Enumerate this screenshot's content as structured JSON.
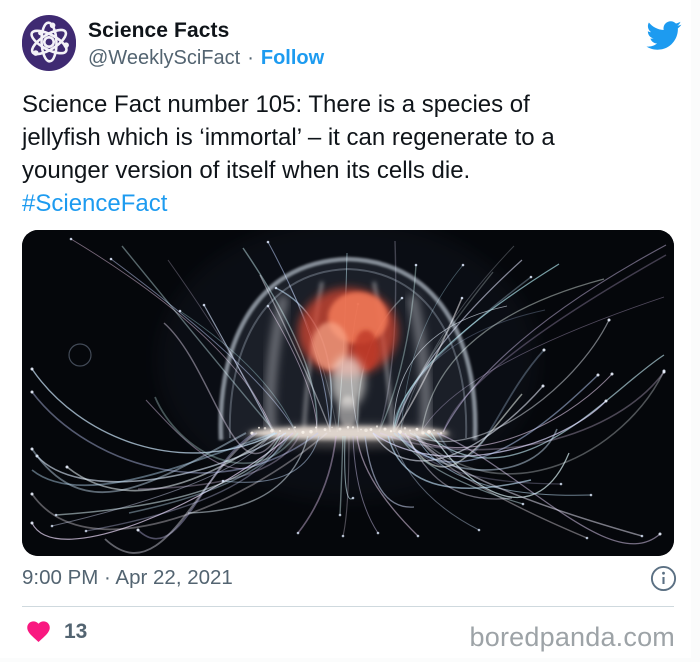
{
  "header": {
    "author_name": "Science Facts",
    "handle": "@WeeklySciFact",
    "separator": "·",
    "follow_label": "Follow"
  },
  "tweet": {
    "body_lines": [
      "Science Fact number 105: There is a species of",
      "jellyfish which is ‘immortal’ – it can regenerate to a",
      "younger version of itself when its cells die."
    ],
    "hashtag": "#ScienceFact"
  },
  "footer": {
    "timestamp": "9:00 PM · Apr 22, 2021",
    "like_count": "13",
    "watermark": "boredpanda.com"
  },
  "icons": {
    "avatar": "atom-icon",
    "logo": "twitter-bird-icon",
    "info": "info-icon",
    "like": "heart-icon"
  },
  "colors": {
    "twitter_blue": "#1d9bf0",
    "heart_pink": "#f91880",
    "avatar_purple": "#3f2a72",
    "text_primary": "#0f1419",
    "text_secondary": "#536471",
    "watermark_gray": "#9da3a7",
    "photo_background": "#05070b"
  }
}
